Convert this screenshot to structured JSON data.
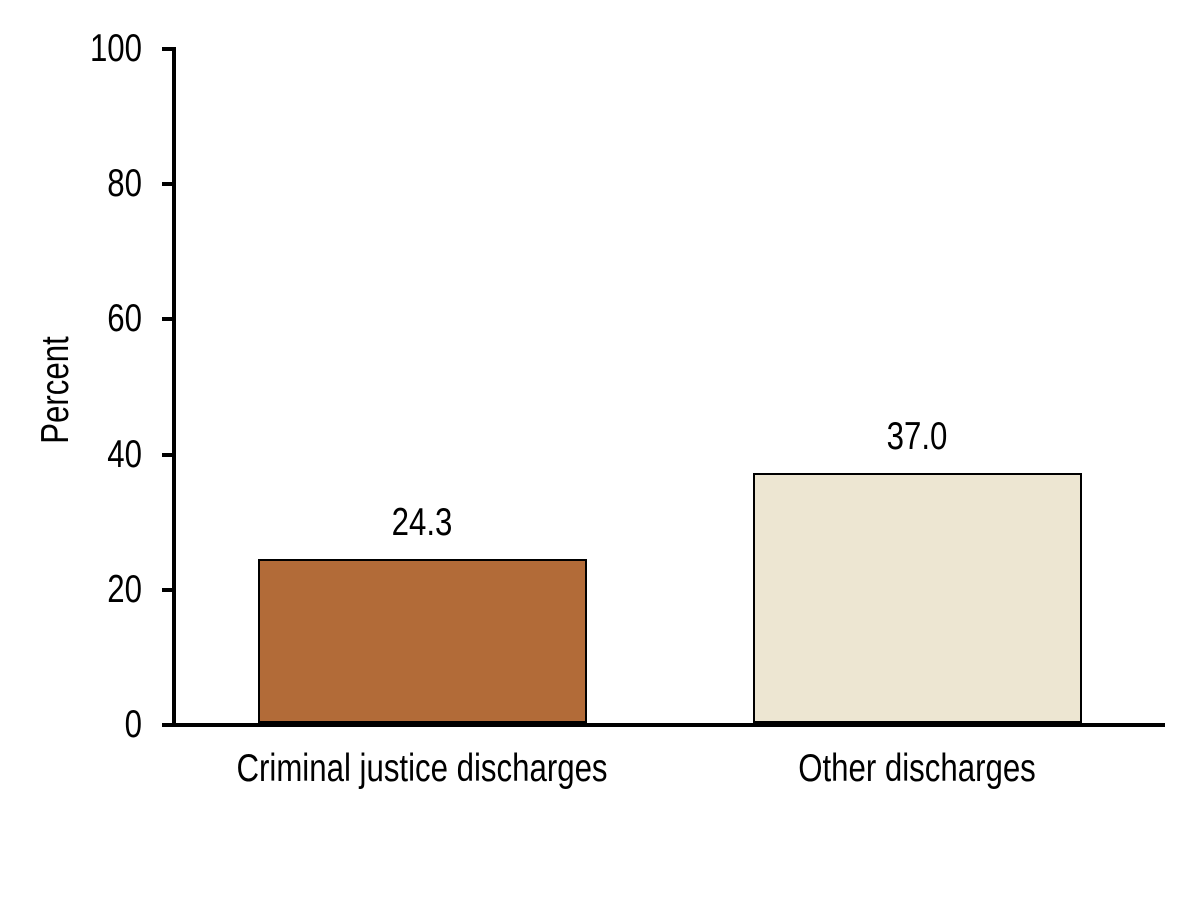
{
  "chart_data": {
    "type": "bar",
    "title": "",
    "xlabel": "",
    "ylabel": "Percent",
    "categories": [
      "Criminal justice discharges",
      "Other discharges"
    ],
    "values": [
      24.3,
      37.0
    ],
    "value_labels": [
      "24.3",
      "37.0"
    ],
    "yticks": [
      0,
      20,
      40,
      60,
      80,
      100
    ],
    "ylim": [
      0,
      100
    ],
    "grid": false,
    "legend": null,
    "bar_colors": [
      "#B26B38",
      "#EDE6D2"
    ],
    "bar_border_color": "#000000",
    "axis_color": "#000000",
    "text_color": "#000000",
    "background_color": "#FFFFFF"
  }
}
